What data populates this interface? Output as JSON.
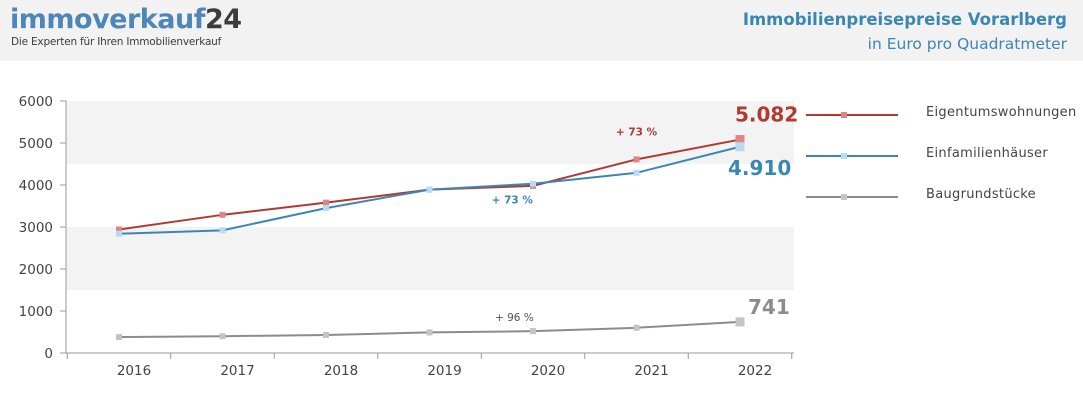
{
  "header": {
    "brand_main": "immoverkauf",
    "brand_num": "24",
    "tagline": "Die Experten für Ihren Immobilienverkauf",
    "title": "Immobilienpreisepreise Vorarlberg",
    "subtitle": "in Euro pro Quadratmeter"
  },
  "chart_data": {
    "type": "line",
    "title": "Immobilienpreisepreise Vorarlberg",
    "subtitle": "in Euro pro Quadratmeter",
    "xlabel": "",
    "ylabel": "",
    "x": [
      "2016",
      "2017",
      "2018",
      "2019",
      "2020",
      "2021",
      "2022"
    ],
    "ylim": [
      0,
      6000
    ],
    "yticks": [
      "0",
      "1000",
      "2000",
      "3000",
      "4000",
      "5000",
      "6000"
    ],
    "grid": "alternating horizontal bands",
    "legend": "right",
    "series": [
      {
        "name": "Eigentumswohnungen",
        "color": "#b03a32",
        "values": [
          2940,
          3290,
          3580,
          3890,
          3980,
          4610,
          5082
        ],
        "end_label": "5.082",
        "change_label": "+ 73 %"
      },
      {
        "name": "Einfamilienhäuser",
        "color": "#3a87b4",
        "values": [
          2840,
          2920,
          3450,
          3890,
          4030,
          4290,
          4910
        ],
        "end_label": "4.910",
        "change_label": "+ 73 %"
      },
      {
        "name": "Baugrundstücke",
        "color": "#8c8c8c",
        "values": [
          380,
          400,
          430,
          490,
          520,
          600,
          741
        ],
        "end_label": "741",
        "change_label": "+ 96 %"
      }
    ]
  }
}
